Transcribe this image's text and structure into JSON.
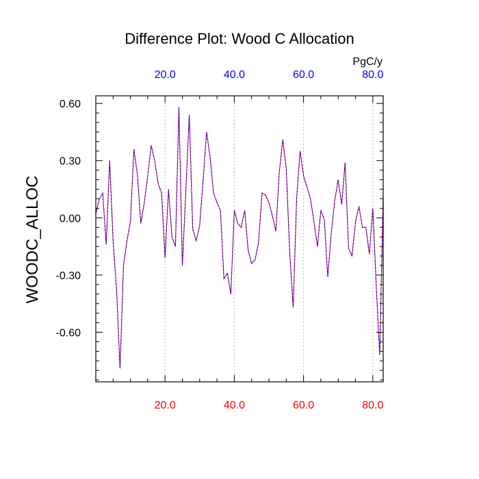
{
  "chart_data": {
    "type": "line",
    "title": "Difference Plot: Wood C Allocation",
    "ylabel": "WOODC_ALLOC",
    "units": "PgC/y",
    "xlim": [
      0,
      83
    ],
    "ylim": [
      -0.86,
      0.64
    ],
    "yticks": [
      0.6,
      0.3,
      0.0,
      -0.3,
      -0.6
    ],
    "ytick_labels": [
      "0.60",
      "0.30",
      "0.00",
      "-0.30",
      "-0.60"
    ],
    "xticks": [
      20,
      40,
      60,
      80
    ],
    "bottom_xtick_labels": [
      "20.0",
      "40.0",
      "60.0",
      "80.0"
    ],
    "top_xtick_labels": [
      "20.0",
      "40.0",
      "60.0",
      "80.0"
    ],
    "grid": "vertical dashed at x ticks",
    "colors": {
      "bottom_axis_labels": "#ff0000",
      "top_axis_labels": "#0000ff",
      "series_solid": "#ff0000",
      "series_dashed": "#0000ff",
      "frame": "#000000",
      "grid": "#b4b4b4"
    },
    "series": [
      {
        "style": "red solid overlaid by blue dashed",
        "x": [
          0,
          1,
          2,
          3,
          4,
          5,
          6,
          7,
          8,
          9,
          10,
          11,
          12,
          13,
          14,
          15,
          16,
          17,
          18,
          19,
          20,
          21,
          22,
          23,
          24,
          25,
          26,
          27,
          28,
          29,
          30,
          31,
          32,
          33,
          34,
          35,
          36,
          37,
          38,
          39,
          40,
          41,
          42,
          43,
          44,
          45,
          46,
          47,
          48,
          49,
          50,
          51,
          52,
          53,
          54,
          55,
          56,
          57,
          58,
          59,
          60,
          61,
          62,
          63,
          64,
          65,
          66,
          67,
          68,
          69,
          70,
          71,
          72,
          73,
          74,
          75,
          76,
          77,
          78,
          79,
          80,
          81,
          82,
          83
        ],
        "values": [
          0.02,
          0.1,
          0.13,
          -0.14,
          0.3,
          -0.12,
          -0.38,
          -0.79,
          -0.25,
          -0.12,
          -0.02,
          0.36,
          0.23,
          -0.03,
          0.08,
          0.22,
          0.38,
          0.3,
          0.18,
          0.13,
          -0.21,
          0.15,
          -0.1,
          -0.15,
          0.58,
          -0.25,
          0.14,
          0.54,
          -0.06,
          -0.12,
          -0.04,
          0.2,
          0.45,
          0.32,
          0.13,
          0.08,
          0.04,
          -0.32,
          -0.29,
          -0.4,
          0.04,
          -0.03,
          -0.05,
          0.04,
          -0.17,
          -0.24,
          -0.22,
          -0.13,
          0.13,
          0.12,
          0.08,
          0.01,
          -0.07,
          0.24,
          0.41,
          0.26,
          -0.18,
          -0.47,
          0.1,
          0.35,
          0.22,
          0.16,
          0.1,
          -0.02,
          -0.15,
          0.04,
          -0.01,
          -0.31,
          -0.08,
          0.09,
          0.2,
          0.07,
          0.29,
          -0.16,
          -0.2,
          -0.02,
          0.06,
          -0.05,
          -0.05,
          -0.19,
          0.05,
          -0.36,
          -0.72,
          0.12
        ]
      }
    ]
  }
}
